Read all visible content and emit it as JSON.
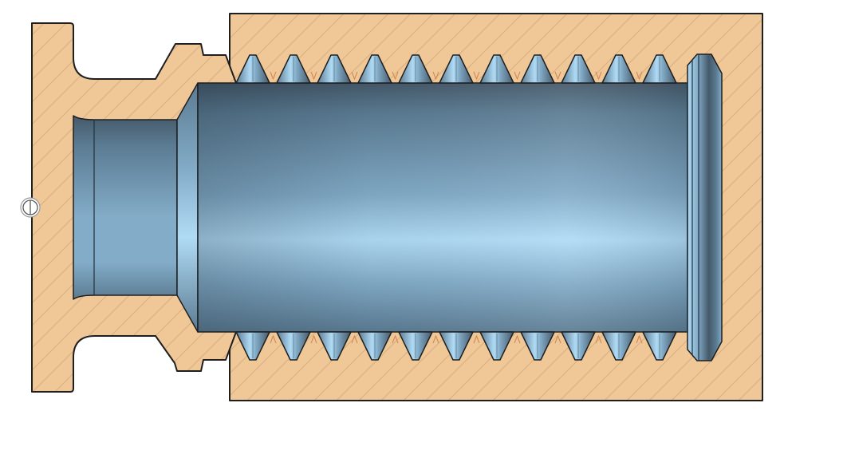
{
  "colors": {
    "background": "#ffffff",
    "section_face": "#f0c898",
    "hatch_line": "#d9ae80",
    "outline": "#1f1f1f",
    "mating_thread": "#cf8a56",
    "surface_shadow": "#45596a",
    "surface_dark": "#5b7b92",
    "surface_mid": "#83acc8",
    "surface_light": "#b0dbf5"
  },
  "icons": {
    "origin_marker": "section-origin-marker-icon"
  }
}
